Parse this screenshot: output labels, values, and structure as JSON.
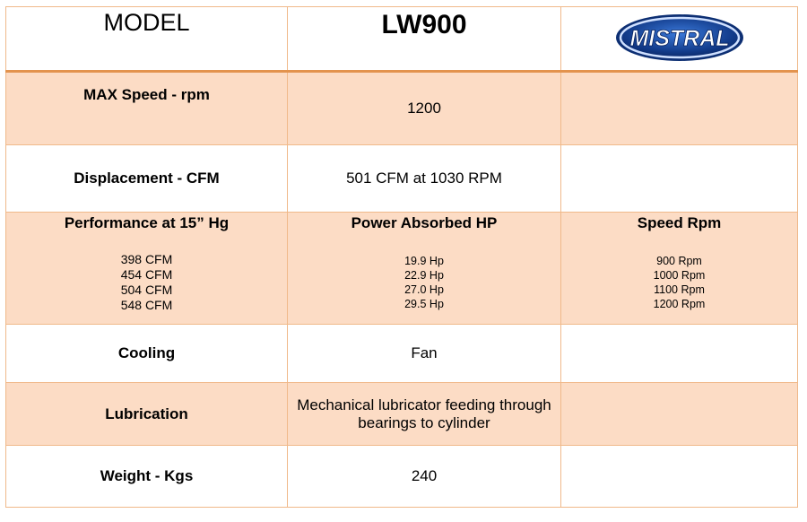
{
  "header": {
    "model_label": "MODEL",
    "model_value": "LW900",
    "logo": {
      "name": "mistral-logo",
      "text": "MISTRAL",
      "colors": {
        "dark": "#0d2f73",
        "mid": "#2a5db0",
        "light": "#cfe0ff"
      }
    }
  },
  "rows": {
    "max_speed": {
      "label": "MAX Speed - rpm",
      "value": "1200"
    },
    "displacement": {
      "label": "Displacement -  CFM",
      "value": "501 CFM at 1030 RPM"
    },
    "performance": {
      "label": "Performance at 15” Hg",
      "flows": [
        "398 CFM",
        "454 CFM",
        "504 CFM",
        "548 CFM"
      ],
      "power_header": "Power Absorbed HP",
      "powers": [
        "19.9 Hp",
        "22.9 Hp",
        "27.0 Hp",
        "29.5 Hp"
      ],
      "speed_header": "Speed Rpm",
      "speeds": [
        "900 Rpm",
        "1000 Rpm",
        "1100 Rpm",
        "1200 Rpm"
      ]
    },
    "cooling": {
      "label": "Cooling",
      "value": "Fan"
    },
    "lubrication": {
      "label": "Lubrication",
      "value_line1": "Mechanical  lubricator feeding through",
      "value_line2": "bearings to cylinder"
    },
    "weight": {
      "label": "Weight - Kgs",
      "value": "240"
    }
  },
  "colors": {
    "border": "#f0b98a",
    "header_rule": "#e3934e",
    "shade": "#fcdcc5"
  }
}
